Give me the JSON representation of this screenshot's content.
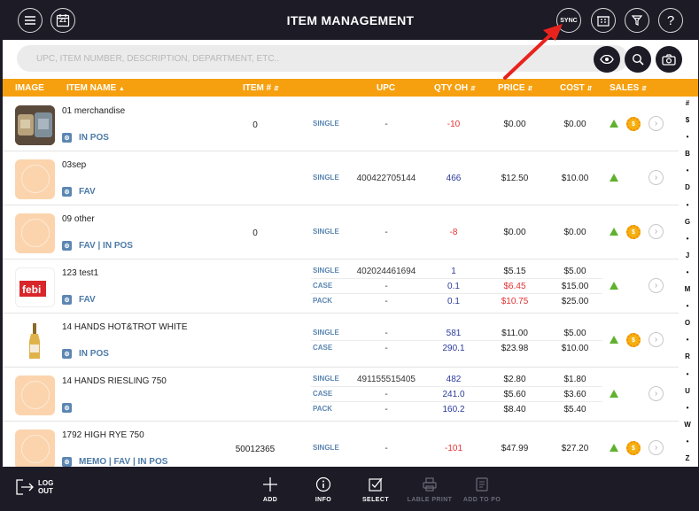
{
  "header": {
    "title": "ITEM MANAGEMENT",
    "sync_label": "SYNC",
    "calendar_label": "21"
  },
  "search": {
    "placeholder": "UPC, ITEM NUMBER, DESCRIPTION, DEPARTMENT, ETC.."
  },
  "columns": {
    "image": "IMAGE",
    "item_name": "ITEM NAME",
    "item_no": "ITEM #",
    "upc": "UPC",
    "qty": "QTY OH",
    "price": "PRICE",
    "cost": "COST",
    "sales": "SALES"
  },
  "rows": [
    {
      "name": "01 merchandise",
      "tags": "IN POS",
      "item_no": "0",
      "subs": [
        {
          "type": "SINGLE",
          "upc": "-",
          "qty": "-10",
          "price": "$0.00",
          "cost": "$0.00"
        }
      ]
    },
    {
      "name": "03sep",
      "tags": "FAV",
      "item_no": "",
      "subs": [
        {
          "type": "SINGLE",
          "upc": "400422705144",
          "qty": "466",
          "price": "$12.50",
          "cost": "$10.00"
        }
      ]
    },
    {
      "name": "09 other",
      "tags": "FAV | IN POS",
      "item_no": "0",
      "subs": [
        {
          "type": "SINGLE",
          "upc": "-",
          "qty": "-8",
          "price": "$0.00",
          "cost": "$0.00"
        }
      ]
    },
    {
      "name": "123 test1",
      "tags": "FAV",
      "item_no": "",
      "subs": [
        {
          "type": "SINGLE",
          "upc": "402024461694",
          "qty": "1",
          "price": "$5.15",
          "cost": "$5.00"
        },
        {
          "type": "CASE",
          "upc": "-",
          "qty": "0.1",
          "price": "$6.45",
          "cost": "$15.00"
        },
        {
          "type": "PACK",
          "upc": "-",
          "qty": "0.1",
          "price": "$10.75",
          "cost": "$25.00"
        }
      ]
    },
    {
      "name": "14 HANDS HOT&TROT WHITE",
      "tags": "IN POS",
      "item_no": "",
      "subs": [
        {
          "type": "SINGLE",
          "upc": "-",
          "qty": "581",
          "price": "$11.00",
          "cost": "$5.00"
        },
        {
          "type": "CASE",
          "upc": "-",
          "qty": "290.1",
          "price": "$23.98",
          "cost": "$10.00"
        }
      ]
    },
    {
      "name": "14 HANDS RIESLING 750",
      "tags": "",
      "item_no": "",
      "subs": [
        {
          "type": "SINGLE",
          "upc": "491155515405",
          "qty": "482",
          "price": "$2.80",
          "cost": "$1.80"
        },
        {
          "type": "CASE",
          "upc": "-",
          "qty": "241.0",
          "price": "$5.60",
          "cost": "$3.60"
        },
        {
          "type": "PACK",
          "upc": "-",
          "qty": "160.2",
          "price": "$8.40",
          "cost": "$5.40"
        }
      ]
    },
    {
      "name": "1792 HIGH RYE 750",
      "tags": "MEMO | FAV | IN POS",
      "item_no": "50012365",
      "subs": [
        {
          "type": "SINGLE",
          "upc": "-",
          "qty": "-101",
          "price": "$47.99",
          "cost": "$27.20"
        }
      ]
    }
  ],
  "alpha_index": [
    "#",
    "$",
    "•",
    "B",
    "•",
    "D",
    "•",
    "G",
    "•",
    "J",
    "•",
    "M",
    "•",
    "O",
    "•",
    "R",
    "•",
    "U",
    "•",
    "W",
    "•",
    "Z"
  ],
  "footer": {
    "logout": "LOG OUT",
    "add": "ADD",
    "info": "INFO",
    "select": "SELECT",
    "label_print": "LABLE PRINT",
    "add_to_po": "ADD TO PO"
  },
  "colors": {
    "header_bg": "#1c1b26",
    "accent": "#f6a00f",
    "tag_blue": "#4d7ba8",
    "negative": "#e43333",
    "qty_blue": "#2a3b9c",
    "annotation_arrow": "#e8231d"
  }
}
